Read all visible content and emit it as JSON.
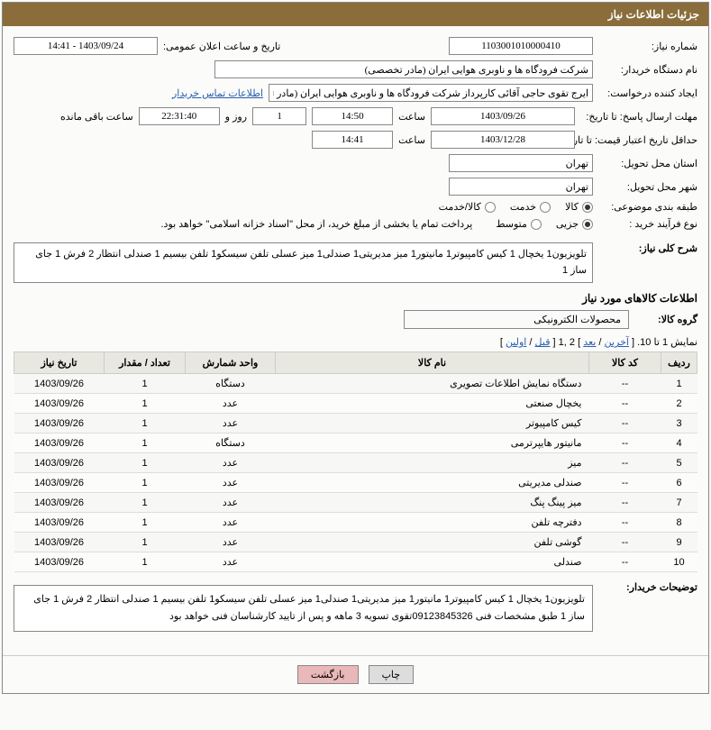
{
  "header": {
    "title": "جزئیات اطلاعات نیاز"
  },
  "form": {
    "need_no_label": "شماره نیاز:",
    "need_no": "1103001010000410",
    "announce_label": "تاریخ و ساعت اعلان عمومی:",
    "announce_val": "1403/09/24 - 14:41",
    "buyer_org_label": "نام دستگاه خریدار:",
    "buyer_org": "شرکت فرودگاه ها و ناوبری هوایی ایران (مادر تخصصی)",
    "requester_label": "ایجاد کننده درخواست:",
    "requester": "ایرج تقوی حاجی آقائی کارپرداز شرکت فرودگاه ها و ناوبری هوایی ایران (مادر تخص",
    "contact_link": "اطلاعات تماس خریدار",
    "reply_deadline_label": "مهلت ارسال پاسخ: تا تاریخ:",
    "reply_date": "1403/09/26",
    "time_label": "ساعت",
    "reply_time": "14:50",
    "days_val": "1",
    "days_and": "روز و",
    "countdown": "22:31:40",
    "remain_label": "ساعت باقی مانده",
    "validity_label": "حداقل تاریخ اعتبار قیمت: تا تاریخ:",
    "validity_date": "1403/12/28",
    "validity_time": "14:41",
    "province_label": "استان محل تحویل:",
    "province": "تهران",
    "city_label": "شهر محل تحویل:",
    "city": "تهران",
    "category_label": "طبقه بندی موضوعی:",
    "cat_goods": "کالا",
    "cat_service": "خدمت",
    "cat_both": "کالا/خدمت",
    "process_label": "نوع فرآیند خرید :",
    "proc_minor": "جزیی",
    "proc_medium": "متوسط",
    "process_note": "پرداخت تمام یا بخشی از مبلغ خرید، از محل \"اسناد خزانه اسلامی\" خواهد بود.",
    "summary_label": "شرح کلی نیاز:",
    "summary_text": "تلویزیون1 یخچال 1 کیس کامپیوتر1 مانیتور1 میز مدیریتی1 صندلی1 میز عسلی تلفن سیسکو1 تلفن بیسیم 1 صندلی انتظار 2 فرش 1 جای ساز 1",
    "goods_info_title": "اطلاعات کالاهای مورد نیاز",
    "group_label": "گروه کالا:",
    "group_val": "محصولات الکترونیکی",
    "pager_text": "نمایش 1 تا 10. [",
    "pager_last": "آخرین",
    "pager_sep1": " / ",
    "pager_next": "بعد",
    "pager_mid": "] 2 ,1 [",
    "pager_prev": "قبل",
    "pager_sep2": " / ",
    "pager_first": "اولین",
    "pager_end": "]",
    "buyer_notes_label": "توضیحات خریدار:",
    "buyer_notes": "تلویزیون1 یخچال 1 کیس کامپیوتر1 مانیتور1 میز مدیریتی1 صندلی1 میز عسلی تلفن سیسکو1 تلفن بیسیم 1 صندلی انتظار 2 فرش 1 جای ساز 1 طبق مشخصات فنی 09123845326تقوی تسویه 3 ماهه و پس از تایید کارشناسان فنی خواهد بود"
  },
  "table": {
    "headers": {
      "row": "ردیف",
      "code": "کد کالا",
      "name": "نام کالا",
      "unit": "واحد شمارش",
      "qty": "تعداد / مقدار",
      "date": "تاریخ نیاز"
    },
    "rows": [
      {
        "n": "1",
        "code": "--",
        "name": "دستگاه نمایش اطلاعات تصویری",
        "unit": "دستگاه",
        "qty": "1",
        "date": "1403/09/26"
      },
      {
        "n": "2",
        "code": "--",
        "name": "یخچال صنعتی",
        "unit": "عدد",
        "qty": "1",
        "date": "1403/09/26"
      },
      {
        "n": "3",
        "code": "--",
        "name": "کیس کامپیوتر",
        "unit": "عدد",
        "qty": "1",
        "date": "1403/09/26"
      },
      {
        "n": "4",
        "code": "--",
        "name": "مانیتور هایپرترمی",
        "unit": "دستگاه",
        "qty": "1",
        "date": "1403/09/26"
      },
      {
        "n": "5",
        "code": "--",
        "name": "میز",
        "unit": "عدد",
        "qty": "1",
        "date": "1403/09/26"
      },
      {
        "n": "6",
        "code": "--",
        "name": "صندلی مدیریتی",
        "unit": "عدد",
        "qty": "1",
        "date": "1403/09/26"
      },
      {
        "n": "7",
        "code": "--",
        "name": "میز پینگ پنگ",
        "unit": "عدد",
        "qty": "1",
        "date": "1403/09/26"
      },
      {
        "n": "8",
        "code": "--",
        "name": "دفترچه تلفن",
        "unit": "عدد",
        "qty": "1",
        "date": "1403/09/26"
      },
      {
        "n": "9",
        "code": "--",
        "name": "گوشی تلفن",
        "unit": "عدد",
        "qty": "1",
        "date": "1403/09/26"
      },
      {
        "n": "10",
        "code": "--",
        "name": "صندلی",
        "unit": "عدد",
        "qty": "1",
        "date": "1403/09/26"
      }
    ]
  },
  "buttons": {
    "print": "چاپ",
    "back": "بازگشت"
  }
}
